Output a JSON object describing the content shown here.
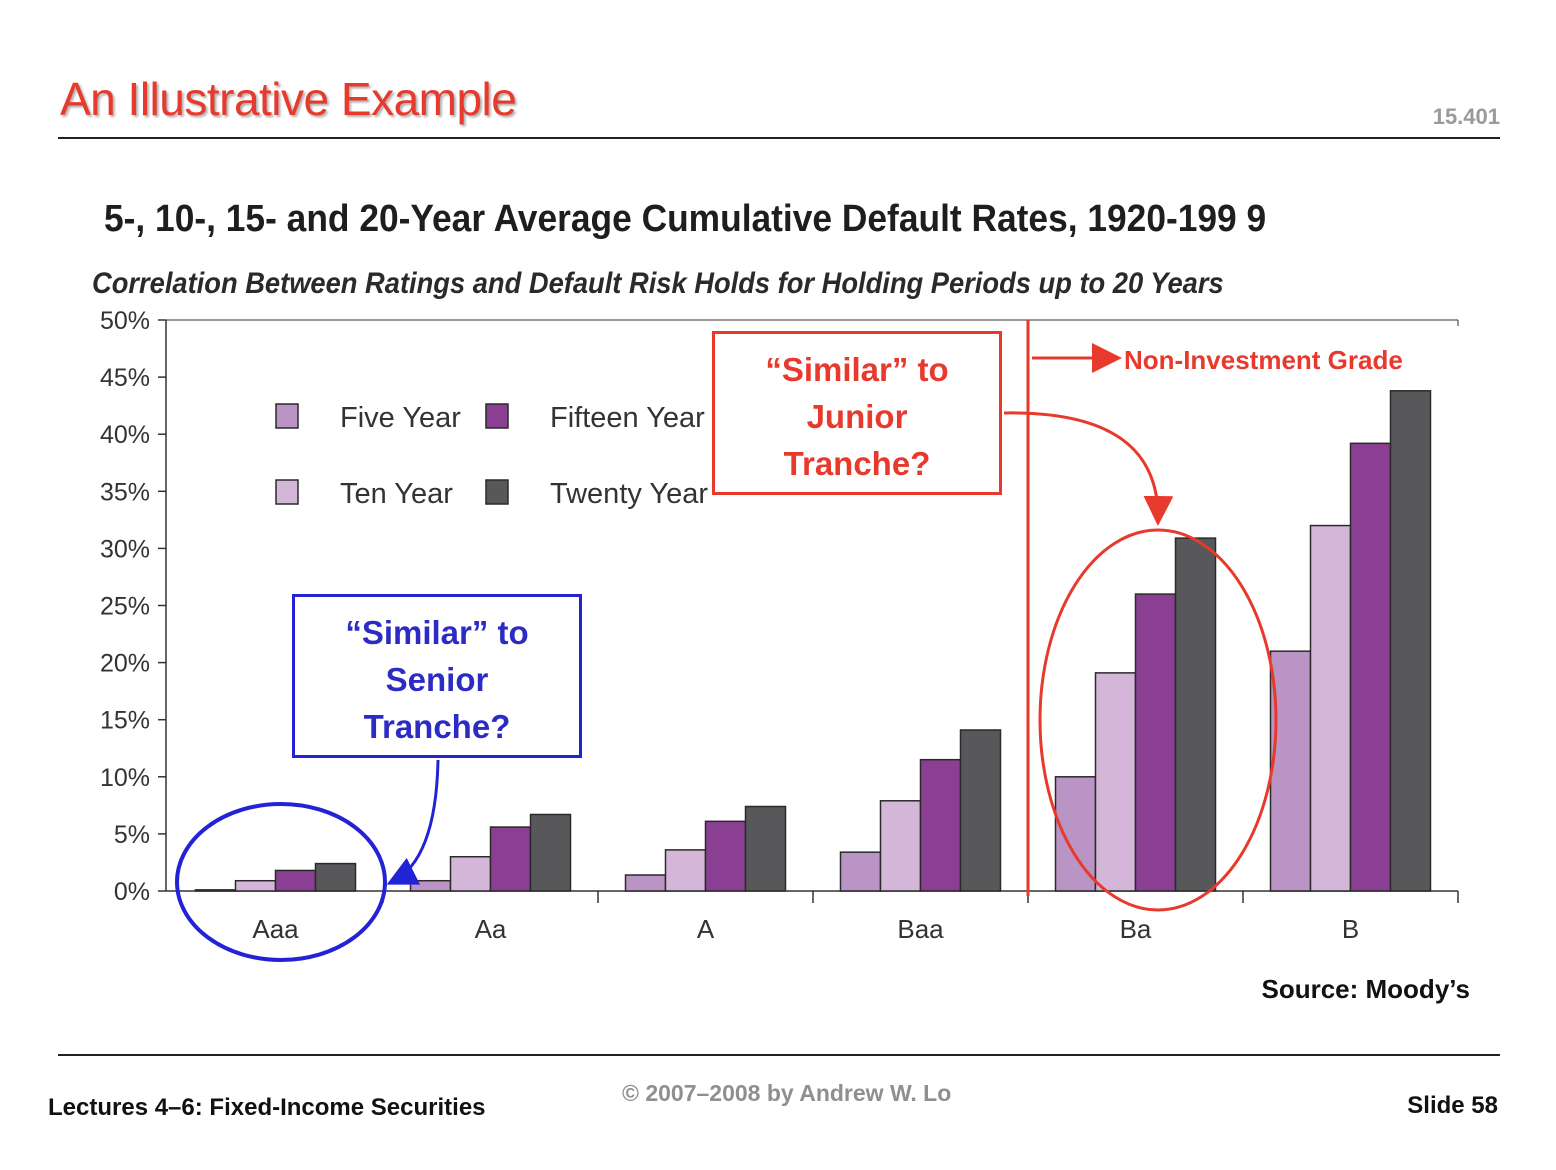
{
  "slide": {
    "title": "An Illustrative Example",
    "course_code": "15.401",
    "footer_left": "Lectures 4–6: Fixed-Income Securities",
    "footer_center": "© 2007–2008 by Andrew W. Lo",
    "footer_right": "Slide 58",
    "source": "Source: Moody’s"
  },
  "annotations": {
    "senior_callout": [
      "“Similar” to",
      "Senior",
      "Tranche?"
    ],
    "junior_callout": [
      "“Similar” to",
      "Junior",
      "Tranche?"
    ],
    "non_investment_grade": "Non-Investment Grade"
  },
  "colors": {
    "accent_red": "#e8392d",
    "accent_blue": "#2323d6"
  },
  "chart_data": {
    "type": "bar",
    "title": "5-, 10-, 15- and 20-Year Average Cumulative Default Rates, 1920-199 9",
    "subtitle": "Correlation Between Ratings and Default Risk Holds for Holding Periods up to 20 Years",
    "categories": [
      "Aaa",
      "Aa",
      "A",
      "Baa",
      "Ba",
      "B"
    ],
    "y_ticks": [
      "0%",
      "5%",
      "10%",
      "15%",
      "20%",
      "25%",
      "30%",
      "35%",
      "40%",
      "45%",
      "50%"
    ],
    "ylim": [
      0,
      50
    ],
    "series": [
      {
        "name": "Five Year",
        "color": "#b994c4",
        "values": [
          0.1,
          0.9,
          1.4,
          3.4,
          10.0,
          21.0
        ]
      },
      {
        "name": "Ten Year",
        "color": "#d4b7d8",
        "values": [
          0.9,
          3.0,
          3.6,
          7.9,
          19.1,
          32.0
        ]
      },
      {
        "name": "Fifteen Year",
        "color": "#8a3f92",
        "values": [
          1.8,
          5.6,
          6.1,
          11.5,
          26.0,
          39.2
        ]
      },
      {
        "name": "Twenty Year",
        "color": "#58585a",
        "values": [
          2.4,
          6.7,
          7.4,
          14.1,
          30.9,
          43.8
        ]
      }
    ],
    "legend_placement": "upper-left",
    "grid": false
  }
}
